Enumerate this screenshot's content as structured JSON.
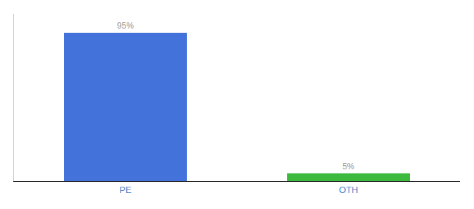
{
  "chart_data": {
    "type": "bar",
    "categories": [
      "PE",
      "OTH"
    ],
    "values": [
      95,
      5
    ],
    "value_labels": [
      "95%",
      "5%"
    ],
    "colors": [
      "#4472db",
      "#3dba3d"
    ],
    "ylim": [
      0,
      107
    ],
    "data_labels": true,
    "tick_labels": "x",
    "grid": false
  }
}
